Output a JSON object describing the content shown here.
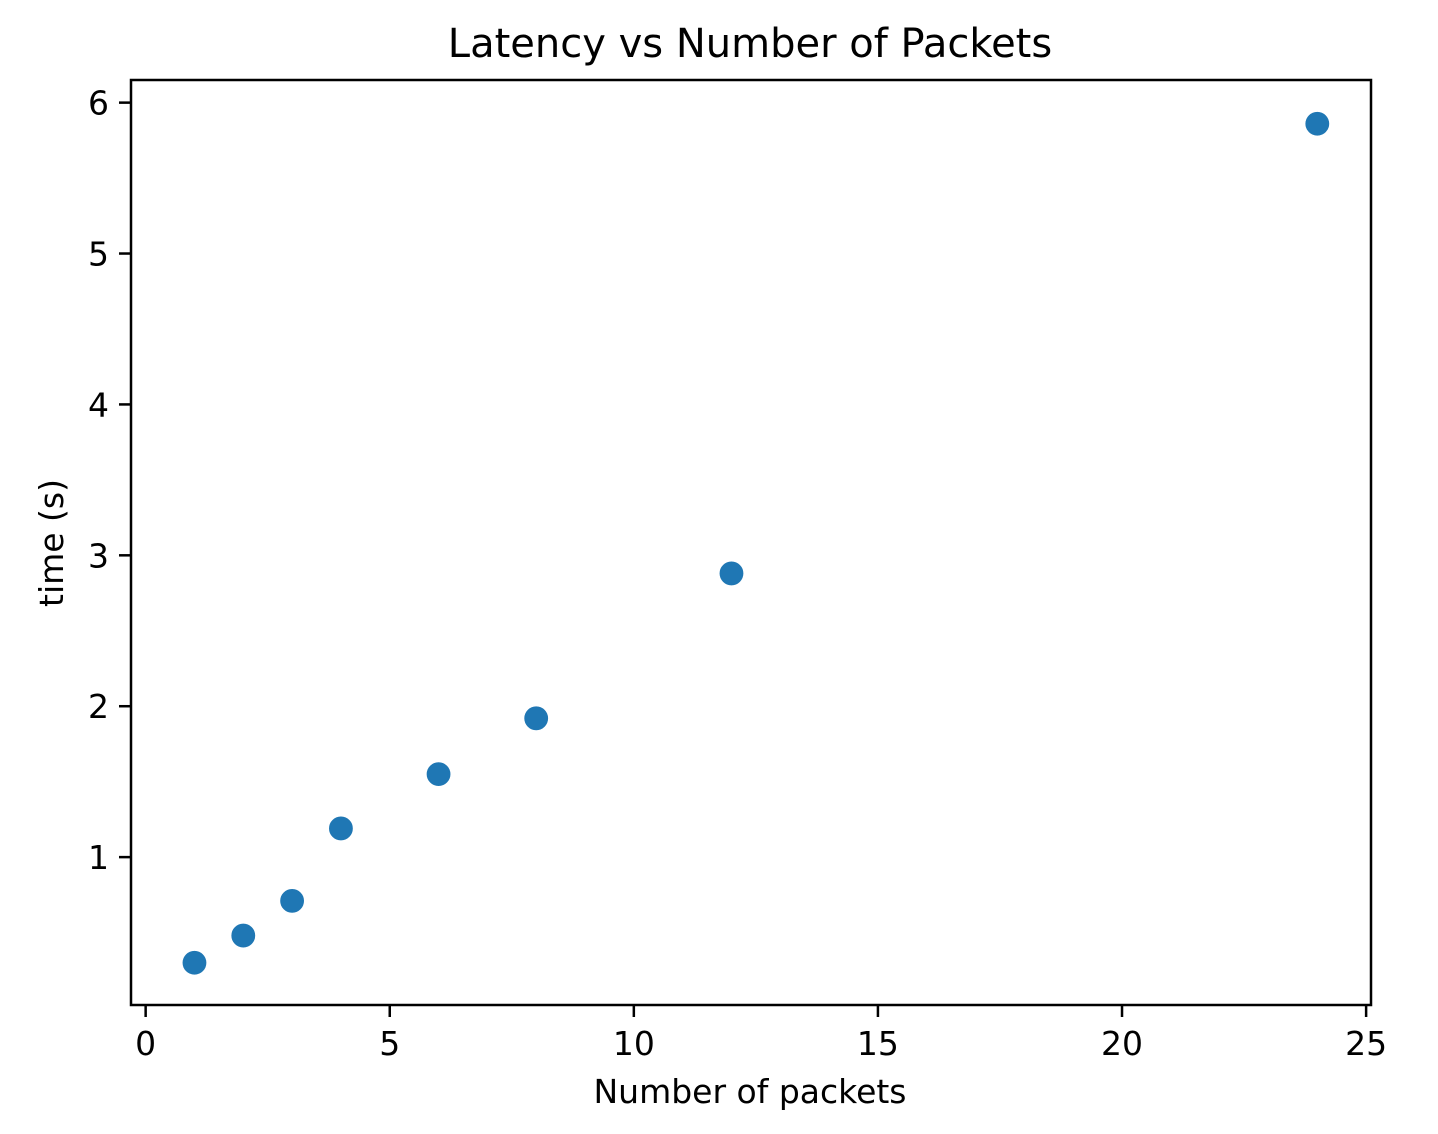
{
  "chart_data": {
    "type": "scatter",
    "title": "Latency vs Number of Packets",
    "xlabel": "Number of packets",
    "ylabel": "time (s)",
    "xlim": [
      -0.3,
      25.1
    ],
    "ylim": [
      0.02,
      6.15
    ],
    "xticks": [
      0,
      5,
      10,
      15,
      20,
      25
    ],
    "yticks": [
      1,
      2,
      3,
      4,
      5,
      6
    ],
    "grid": false,
    "series": [
      {
        "color": "#1f77b4",
        "x": [
          1,
          2,
          3,
          4,
          6,
          8,
          12,
          24
        ],
        "y": [
          0.3,
          0.48,
          0.71,
          1.19,
          1.55,
          1.92,
          2.88,
          5.86
        ]
      }
    ]
  }
}
